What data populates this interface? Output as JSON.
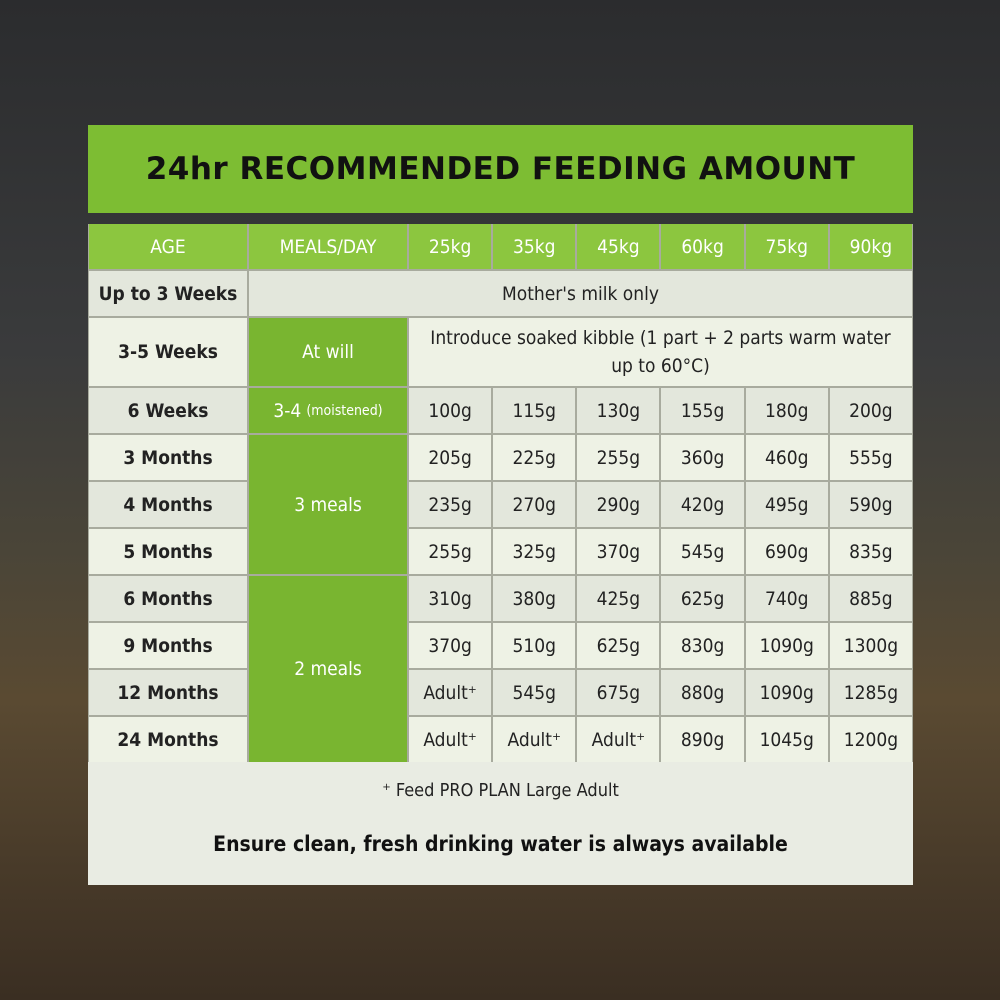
{
  "title": "24hr RECOMMENDED FEEDING AMOUNT",
  "table": {
    "header": [
      "AGE",
      "MEALS/DAY",
      "25kg",
      "35kg",
      "45kg",
      "60kg",
      "75kg",
      "90kg"
    ],
    "rows": [
      {
        "age": "Up to 3 Weeks",
        "note": "Mother's milk only"
      },
      {
        "age": "3-5 Weeks",
        "meals": "At will",
        "note": "Introduce soaked kibble (1 part + 2 parts warm water up to 60°C)"
      },
      {
        "age": "6 Weeks",
        "meals": "3-4",
        "meals_note": "(moistened)",
        "amounts": [
          "100g",
          "115g",
          "130g",
          "155g",
          "180g",
          "200g"
        ]
      },
      {
        "age": "3 Months",
        "meals": "3 meals",
        "amounts": [
          "205g",
          "225g",
          "255g",
          "360g",
          "460g",
          "555g"
        ]
      },
      {
        "age": "4 Months",
        "amounts": [
          "235g",
          "270g",
          "290g",
          "420g",
          "495g",
          "590g"
        ]
      },
      {
        "age": "5 Months",
        "amounts": [
          "255g",
          "325g",
          "370g",
          "545g",
          "690g",
          "835g"
        ]
      },
      {
        "age": "6 Months",
        "meals": "2 meals",
        "amounts": [
          "310g",
          "380g",
          "425g",
          "625g",
          "740g",
          "885g"
        ]
      },
      {
        "age": "9 Months",
        "amounts": [
          "370g",
          "510g",
          "625g",
          "830g",
          "1090g",
          "1300g"
        ]
      },
      {
        "age": "12 Months",
        "amounts": [
          "Adult⁺",
          "545g",
          "675g",
          "880g",
          "1090g",
          "1285g"
        ]
      },
      {
        "age": "24 Months",
        "amounts": [
          "Adult⁺",
          "Adult⁺",
          "Adult⁺",
          "890g",
          "1045g",
          "1200g"
        ]
      }
    ]
  },
  "footnote": "⁺ Feed PRO PLAN Large Adult",
  "notice": "Ensure clean, fresh drinking water is always available"
}
